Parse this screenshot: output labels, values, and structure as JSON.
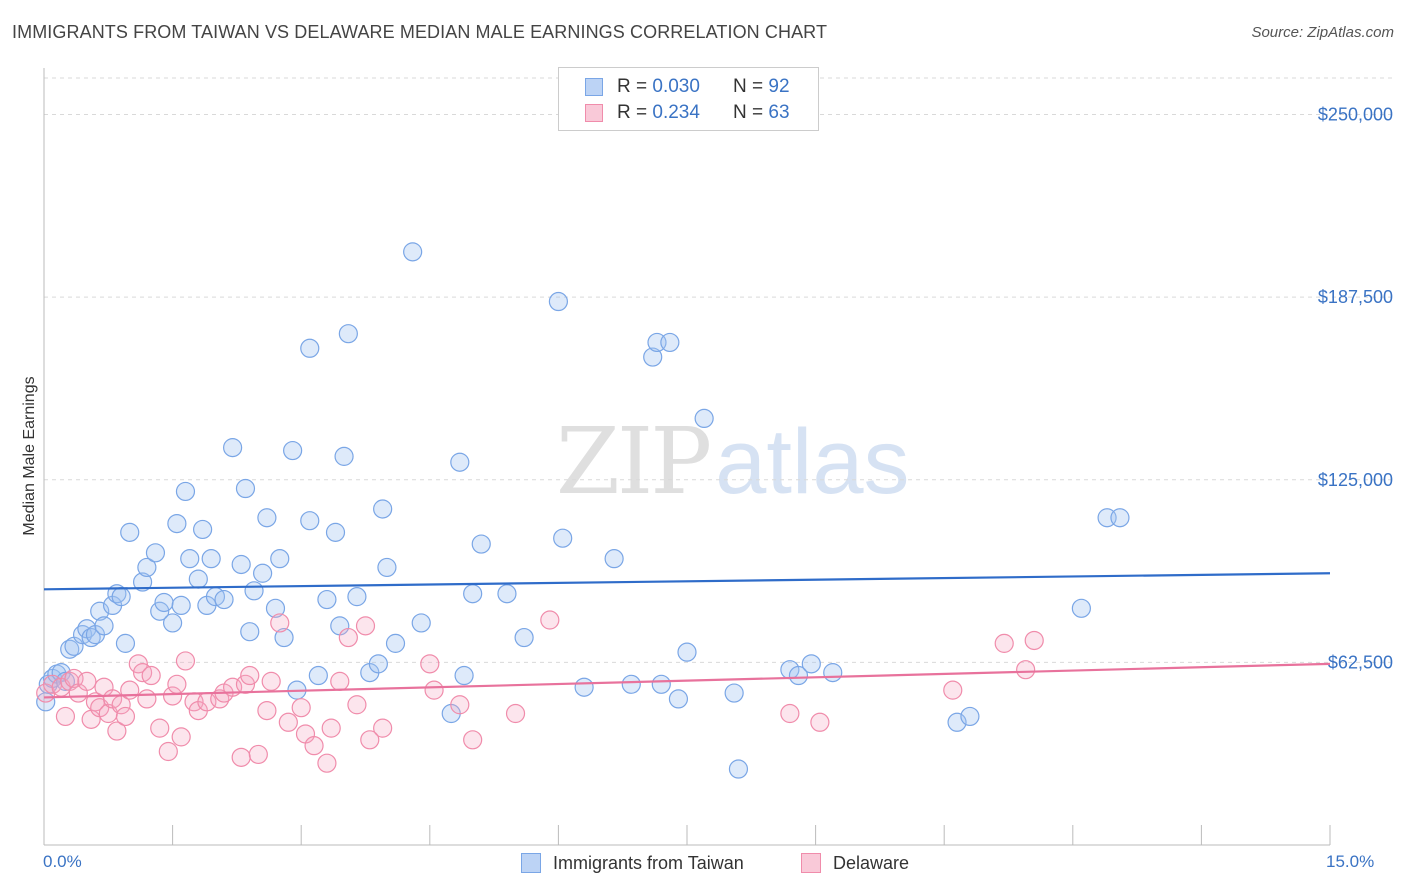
{
  "title": "IMMIGRANTS FROM TAIWAN VS DELAWARE MEDIAN MALE EARNINGS CORRELATION CHART",
  "source": "Source: ZipAtlas.com",
  "watermark": {
    "zip": "ZIP",
    "atlas": "atlas"
  },
  "legend": {
    "r_label": "R =",
    "n_label": "N =",
    "rows": [
      {
        "r": "0.030",
        "n": "92",
        "color": "#7aa6e6",
        "fill": "#bcd3f5"
      },
      {
        "r": "0.234",
        "n": "63",
        "color": "#f08cab",
        "fill": "#f9c9d8"
      }
    ]
  },
  "colors": {
    "blue": "#7aa6e6",
    "blue_line": "#2f6cc9",
    "pink": "#f08cab",
    "pink_line": "#e8729c",
    "tick_text": "#3a73c4",
    "grid": "#d9d9d9"
  },
  "chart_data": {
    "type": "scatter",
    "title": "IMMIGRANTS FROM TAIWAN VS DELAWARE MEDIAN MALE EARNINGS CORRELATION CHART",
    "xlabel": "",
    "ylabel": "Median Male Earnings",
    "xlim": [
      0,
      15
    ],
    "ylim": [
      0,
      262500
    ],
    "x_tick_labels": [
      "0.0%",
      "15.0%"
    ],
    "y_ticks": [
      62500,
      125000,
      187500,
      250000
    ],
    "y_tick_labels": [
      "$62,500",
      "$125,000",
      "$187,500",
      "$250,000"
    ],
    "grid": true,
    "legend_position": "top-center",
    "series": [
      {
        "name": "Immigrants from Taiwan",
        "color": "#7aa6e6",
        "trend": {
          "x": [
            0,
            15
          ],
          "y": [
            87500,
            93000
          ]
        },
        "points": [
          [
            0.02,
            49000
          ],
          [
            0.05,
            55000
          ],
          [
            0.1,
            57000
          ],
          [
            0.15,
            58500
          ],
          [
            0.2,
            59000
          ],
          [
            0.25,
            56000
          ],
          [
            0.3,
            67000
          ],
          [
            0.35,
            68000
          ],
          [
            0.45,
            72000
          ],
          [
            0.5,
            74000
          ],
          [
            0.55,
            71000
          ],
          [
            0.6,
            72000
          ],
          [
            0.65,
            80000
          ],
          [
            0.7,
            75000
          ],
          [
            0.8,
            82000
          ],
          [
            0.85,
            86000
          ],
          [
            0.9,
            85000
          ],
          [
            0.95,
            69000
          ],
          [
            1.0,
            107000
          ],
          [
            1.15,
            90000
          ],
          [
            1.2,
            95000
          ],
          [
            1.3,
            100000
          ],
          [
            1.35,
            80000
          ],
          [
            1.4,
            83000
          ],
          [
            1.5,
            76000
          ],
          [
            1.55,
            110000
          ],
          [
            1.6,
            82000
          ],
          [
            1.65,
            121000
          ],
          [
            1.7,
            98000
          ],
          [
            1.8,
            91000
          ],
          [
            1.85,
            108000
          ],
          [
            1.9,
            82000
          ],
          [
            1.95,
            98000
          ],
          [
            2.0,
            85000
          ],
          [
            2.1,
            84000
          ],
          [
            2.2,
            136000
          ],
          [
            2.3,
            96000
          ],
          [
            2.35,
            122000
          ],
          [
            2.4,
            73000
          ],
          [
            2.45,
            87000
          ],
          [
            2.55,
            93000
          ],
          [
            2.6,
            112000
          ],
          [
            2.7,
            81000
          ],
          [
            2.75,
            98000
          ],
          [
            2.8,
            71000
          ],
          [
            2.9,
            135000
          ],
          [
            2.95,
            53000
          ],
          [
            3.1,
            111000
          ],
          [
            3.1,
            170000
          ],
          [
            3.2,
            58000
          ],
          [
            3.3,
            84000
          ],
          [
            3.4,
            107000
          ],
          [
            3.45,
            75000
          ],
          [
            3.5,
            133000
          ],
          [
            3.55,
            175000
          ],
          [
            3.65,
            85000
          ],
          [
            3.8,
            59000
          ],
          [
            3.9,
            62000
          ],
          [
            3.95,
            115000
          ],
          [
            4.0,
            95000
          ],
          [
            4.1,
            69000
          ],
          [
            4.3,
            203000
          ],
          [
            4.4,
            76000
          ],
          [
            4.75,
            45000
          ],
          [
            4.85,
            131000
          ],
          [
            4.9,
            58000
          ],
          [
            5.0,
            86000
          ],
          [
            5.1,
            103000
          ],
          [
            5.4,
            86000
          ],
          [
            5.6,
            71000
          ],
          [
            6.0,
            186000
          ],
          [
            6.05,
            105000
          ],
          [
            6.3,
            54000
          ],
          [
            6.65,
            98000
          ],
          [
            6.85,
            55000
          ],
          [
            7.1,
            167000
          ],
          [
            7.15,
            172000
          ],
          [
            7.2,
            55000
          ],
          [
            7.3,
            172000
          ],
          [
            7.4,
            50000
          ],
          [
            7.5,
            66000
          ],
          [
            7.7,
            146000
          ],
          [
            8.05,
            52000
          ],
          [
            8.1,
            26000
          ],
          [
            8.7,
            60000
          ],
          [
            8.8,
            58000
          ],
          [
            8.95,
            62000
          ],
          [
            9.2,
            59000
          ],
          [
            10.65,
            42000
          ],
          [
            10.8,
            44000
          ],
          [
            12.1,
            81000
          ],
          [
            12.4,
            112000
          ],
          [
            12.55,
            112000
          ]
        ]
      },
      {
        "name": "Delaware",
        "color": "#f08cab",
        "trend": {
          "x": [
            0,
            15
          ],
          "y": [
            50500,
            62000
          ]
        },
        "points": [
          [
            0.02,
            52000
          ],
          [
            0.1,
            55000
          ],
          [
            0.2,
            54000
          ],
          [
            0.25,
            44000
          ],
          [
            0.3,
            56000
          ],
          [
            0.35,
            57000
          ],
          [
            0.4,
            52000
          ],
          [
            0.5,
            56000
          ],
          [
            0.55,
            43000
          ],
          [
            0.6,
            49000
          ],
          [
            0.65,
            47000
          ],
          [
            0.7,
            54000
          ],
          [
            0.75,
            45000
          ],
          [
            0.8,
            50000
          ],
          [
            0.85,
            39000
          ],
          [
            0.9,
            48000
          ],
          [
            0.95,
            44000
          ],
          [
            1.0,
            53000
          ],
          [
            1.1,
            62000
          ],
          [
            1.15,
            59000
          ],
          [
            1.2,
            50000
          ],
          [
            1.25,
            58000
          ],
          [
            1.35,
            40000
          ],
          [
            1.45,
            32000
          ],
          [
            1.5,
            51000
          ],
          [
            1.55,
            55000
          ],
          [
            1.6,
            37000
          ],
          [
            1.65,
            63000
          ],
          [
            1.75,
            49000
          ],
          [
            1.8,
            46000
          ],
          [
            1.9,
            49000
          ],
          [
            2.05,
            50000
          ],
          [
            2.1,
            52000
          ],
          [
            2.2,
            54000
          ],
          [
            2.3,
            30000
          ],
          [
            2.35,
            55000
          ],
          [
            2.4,
            58000
          ],
          [
            2.5,
            31000
          ],
          [
            2.6,
            46000
          ],
          [
            2.65,
            56000
          ],
          [
            2.75,
            76000
          ],
          [
            2.85,
            42000
          ],
          [
            3.0,
            47000
          ],
          [
            3.05,
            38000
          ],
          [
            3.15,
            34000
          ],
          [
            3.3,
            28000
          ],
          [
            3.35,
            40000
          ],
          [
            3.45,
            56000
          ],
          [
            3.55,
            71000
          ],
          [
            3.65,
            48000
          ],
          [
            3.75,
            75000
          ],
          [
            3.8,
            36000
          ],
          [
            3.95,
            40000
          ],
          [
            4.5,
            62000
          ],
          [
            4.55,
            53000
          ],
          [
            4.85,
            48000
          ],
          [
            5.0,
            36000
          ],
          [
            5.5,
            45000
          ],
          [
            5.9,
            77000
          ],
          [
            8.7,
            45000
          ],
          [
            9.05,
            42000
          ],
          [
            10.6,
            53000
          ],
          [
            11.2,
            69000
          ],
          [
            11.45,
            60000
          ],
          [
            11.55,
            70000
          ]
        ]
      }
    ]
  },
  "axis": {
    "y_ticks": [
      {
        "label": "$62,500"
      },
      {
        "label": "$125,000"
      },
      {
        "label": "$187,500"
      },
      {
        "label": "$250,000"
      }
    ]
  },
  "x_axis": {
    "min_label": "0.0%",
    "max_label": "15.0%"
  },
  "bottom_legend": [
    {
      "label": "Immigrants from Taiwan"
    },
    {
      "label": "Delaware"
    }
  ]
}
